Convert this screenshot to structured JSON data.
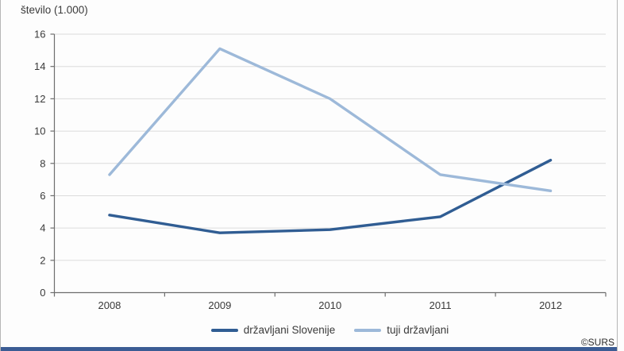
{
  "title": "število (1.000)",
  "footer": {
    "copyright": "©SURS"
  },
  "colors": {
    "background": "#fdfdfd",
    "frame_border": "#b6b6b6",
    "grid": "#dcdcdc",
    "axis": "#6e6e6e",
    "text": "#3a3a3a",
    "series_dark": "#305d93",
    "series_light": "#9db9d9",
    "footer_bar": "#3b5c94"
  },
  "chart_data": {
    "type": "line",
    "title": "",
    "ylabel": "število (1.000)",
    "xlabel": "",
    "categories": [
      "2008",
      "2009",
      "2010",
      "2011",
      "2012"
    ],
    "series": [
      {
        "name": "državljani Slovenije",
        "color": "#305d93",
        "values": [
          4.8,
          3.7,
          3.9,
          4.7,
          8.2
        ]
      },
      {
        "name": "tuji državljani",
        "color": "#9db9d9",
        "values": [
          7.3,
          15.1,
          12.0,
          7.3,
          6.3
        ]
      }
    ],
    "ylim": [
      0,
      16
    ],
    "ytick_step": 2,
    "grid": true,
    "legend_position": "bottom"
  }
}
